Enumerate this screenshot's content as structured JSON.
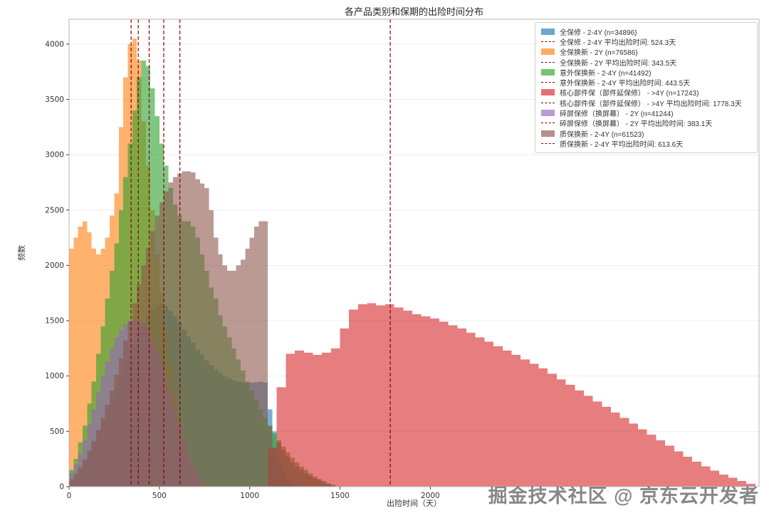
{
  "title": "各产品类别和保期的出险时间分布",
  "xlabel": "出险时间（天）",
  "ylabel": "频数",
  "watermark": "掘金技术社区 @ 京东云开发者",
  "chart_data": {
    "type": "histogram",
    "title": "各产品类别和保期的出险时间分布",
    "xlabel": "出险时间（天）",
    "ylabel": "频数",
    "legend_position": "top-right",
    "grid": "light-horizontal",
    "mean_line_color": "#8B0000",
    "x_axis": {
      "min": 0,
      "max": 3820,
      "tick_labels": [
        0,
        500,
        1000,
        1500,
        2000
      ]
    },
    "y_axis": {
      "min": 0,
      "max": 4225,
      "tick_labels": [
        0,
        500,
        1000,
        1500,
        2000,
        2500,
        3000,
        3500,
        4000
      ]
    },
    "series": [
      {
        "name": "全保修 - 2-4Y",
        "n": 34896,
        "mean_days": 524.3,
        "color": "#1f77b4",
        "bin_start": 0,
        "bin_width": 25,
        "counts": [
          80,
          130,
          190,
          260,
          340,
          420,
          510,
          600,
          700,
          800,
          900,
          1000,
          1100,
          1200,
          1300,
          1400,
          1480,
          1550,
          1600,
          1640,
          1650,
          1630,
          1590,
          1540,
          1480,
          1420,
          1360,
          1300,
          1240,
          1190,
          1140,
          1100,
          1060,
          1030,
          1000,
          980,
          960,
          950,
          945,
          940,
          940,
          945,
          950,
          940,
          700,
          500,
          400,
          330,
          270,
          220,
          180,
          150,
          120,
          95,
          75,
          55,
          40,
          25,
          12
        ]
      },
      {
        "name": "全保换新 - 2Y",
        "n": 76586,
        "mean_days": 343.5,
        "color": "#ff7f0e",
        "bin_start": 0,
        "bin_width": 25,
        "counts": [
          2150,
          2250,
          2350,
          2400,
          2300,
          2150,
          2100,
          2150,
          2250,
          2450,
          2650,
          3250,
          3700,
          4000,
          4050,
          3850,
          3300,
          2900,
          2500,
          2100,
          1750,
          1400,
          1100,
          850,
          620,
          430,
          280,
          170,
          90,
          40,
          15
        ]
      },
      {
        "name": "意外保换新 - 2-4Y",
        "n": 41492,
        "mean_days": 443.5,
        "color": "#2ca02c",
        "bin_start": 0,
        "bin_width": 25,
        "counts": [
          150,
          250,
          400,
          550,
          750,
          950,
          1200,
          1450,
          1700,
          1950,
          2200,
          2500,
          2800,
          3100,
          3400,
          3700,
          3850,
          3800,
          3600,
          3350,
          3100,
          2900,
          2700,
          2550,
          2450,
          2400,
          2400,
          2350,
          2250,
          2100,
          1950,
          1800,
          1700,
          1550,
          1450,
          1350,
          1250,
          1150,
          1050,
          950,
          870,
          790,
          700,
          620,
          550,
          480,
          420,
          360,
          310,
          260,
          220,
          180,
          150,
          120,
          90,
          70,
          50,
          30,
          15
        ]
      },
      {
        "name": "核心部件保（部件延保修） - >4Y",
        "n": 17243,
        "mean_days": 1778.3,
        "color": "#d62728",
        "bin_start": 1100,
        "bin_width": 50,
        "counts": [
          350,
          900,
          1200,
          1230,
          1210,
          1190,
          1210,
          1250,
          1430,
          1600,
          1650,
          1660,
          1640,
          1650,
          1620,
          1590,
          1560,
          1540,
          1520,
          1490,
          1460,
          1430,
          1390,
          1350,
          1310,
          1270,
          1230,
          1190,
          1150,
          1110,
          1070,
          1020,
          970,
          920,
          870,
          820,
          770,
          720,
          670,
          620,
          570,
          520,
          470,
          420,
          370,
          320,
          270,
          225,
          185,
          145,
          110,
          80,
          50,
          25
        ]
      },
      {
        "name": "碎屏保修（换屏幕） - 2Y",
        "n": 41244,
        "mean_days": 383.1,
        "color": "#9467bd",
        "bin_start": 0,
        "bin_width": 25,
        "counts": [
          120,
          200,
          300,
          420,
          560,
          700,
          850,
          1000,
          1130,
          1250,
          1350,
          1420,
          1470,
          1500,
          1510,
          1500,
          1460,
          1400,
          1320,
          1220,
          1100,
          970,
          830,
          690,
          550,
          420,
          300,
          190,
          100,
          40
        ]
      },
      {
        "name": "质保换新 - 2-4Y",
        "n": 61523,
        "mean_days": 613.6,
        "color": "#8c564b",
        "bin_start": 0,
        "bin_width": 25,
        "counts": [
          60,
          110,
          170,
          240,
          320,
          410,
          510,
          620,
          740,
          870,
          1010,
          1160,
          1320,
          1490,
          1660,
          1830,
          2000,
          2160,
          2310,
          2450,
          2570,
          2670,
          2750,
          2800,
          2830,
          2850,
          2850,
          2840,
          2780,
          2740,
          2700,
          2500,
          2250,
          2100,
          2000,
          1950,
          1950,
          2000,
          2050,
          2150,
          2250,
          2350,
          2400,
          2400,
          550,
          350,
          220,
          130,
          70,
          30
        ]
      }
    ],
    "legend": [
      {
        "type": "patch",
        "series": 0,
        "label": "全保修 - 2-4Y (n=34896)"
      },
      {
        "type": "mean",
        "series": 0,
        "label": "全保修 - 2-4Y 平均出险时间: 524.3天"
      },
      {
        "type": "patch",
        "series": 1,
        "label": "全保换新 - 2Y (n=76586)"
      },
      {
        "type": "mean",
        "series": 1,
        "label": "全保换新 - 2Y 平均出险时间: 343.5天"
      },
      {
        "type": "patch",
        "series": 2,
        "label": "意外保换新 - 2-4Y (n=41492)"
      },
      {
        "type": "mean",
        "series": 2,
        "label": "意外保换新 - 2-4Y 平均出险时间: 443.5天"
      },
      {
        "type": "patch",
        "series": 3,
        "label": "核心部件保（部件延保修） - >4Y (n=17243)"
      },
      {
        "type": "mean",
        "series": 3,
        "label": "核心部件保（部件延保修） - >4Y 平均出险时间: 1778.3天"
      },
      {
        "type": "patch",
        "series": 4,
        "label": "碎屏保修（换屏幕） - 2Y (n=41244)"
      },
      {
        "type": "mean",
        "series": 4,
        "label": "碎屏保修（换屏幕） - 2Y 平均出险时间: 383.1天"
      },
      {
        "type": "patch",
        "series": 5,
        "label": "质保换新 - 2-4Y (n=61523)"
      },
      {
        "type": "mean",
        "series": 5,
        "label": "质保换新 - 2-4Y 平均出险时间: 613.6天"
      }
    ]
  }
}
